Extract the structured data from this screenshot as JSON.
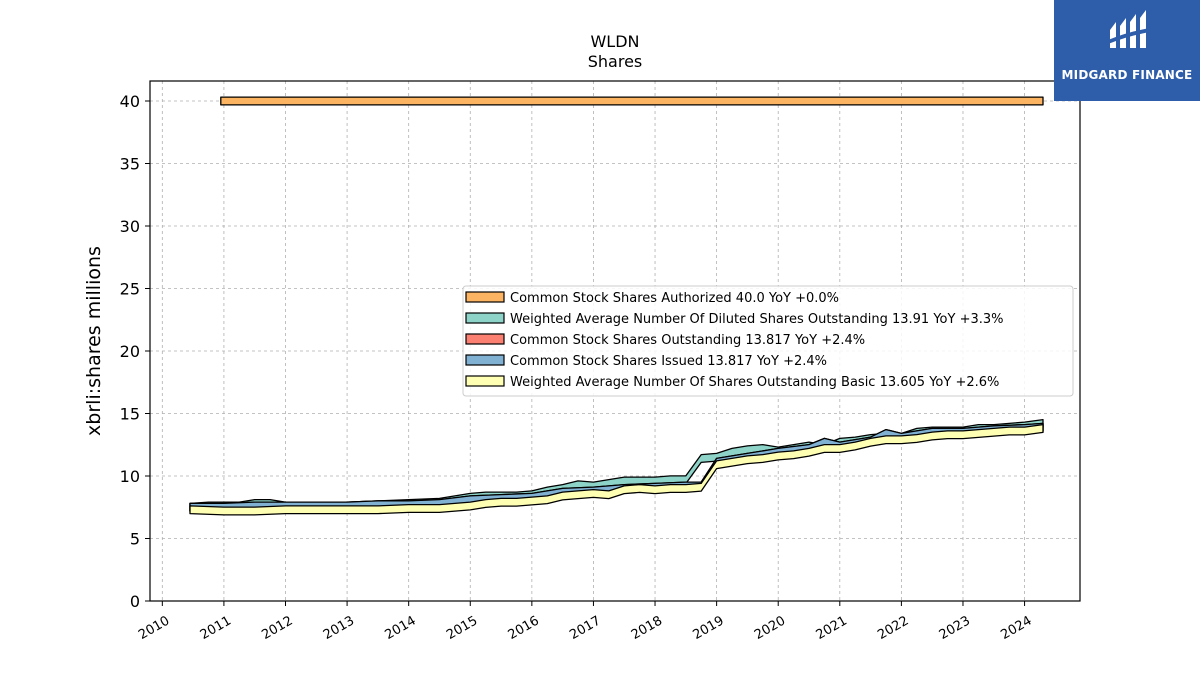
{
  "chart_data": {
    "type": "area",
    "title": "WLDN",
    "subtitle": "Shares",
    "ylabel": "xbrli:shares millions",
    "xlabel": "",
    "ylim": [
      0,
      41.6
    ],
    "xlim": [
      2009.8,
      2024.9
    ],
    "yticks": [
      0,
      5,
      10,
      15,
      20,
      25,
      30,
      35,
      40
    ],
    "xticks": [
      "2010",
      "2011",
      "2012",
      "2013",
      "2014",
      "2015",
      "2016",
      "2017",
      "2018",
      "2019",
      "2020",
      "2021",
      "2022",
      "2023",
      "2024"
    ],
    "grid": true,
    "legend_position": "center-right",
    "series": [
      {
        "name": "Common Stock Shares Authorized",
        "legend": "Common Stock Shares Authorized  40.0 YoY +0.0%",
        "color": "#fdb462",
        "x": [
          2010.95,
          2024.3
        ],
        "y": [
          40.0,
          40.0
        ]
      },
      {
        "name": "Weighted Average Number Of Diluted Shares Outstanding",
        "legend": "Weighted Average Number Of Diluted Shares Outstanding  13.91 YoY +3.3%",
        "color": "#8dd3c7",
        "x": [
          2010.45,
          2010.75,
          2011.0,
          2011.25,
          2011.5,
          2011.75,
          2012.0,
          2012.5,
          2013.0,
          2013.5,
          2014.0,
          2014.5,
          2014.75,
          2015.0,
          2015.25,
          2015.5,
          2015.75,
          2016.0,
          2016.25,
          2016.5,
          2016.75,
          2017.0,
          2017.25,
          2017.5,
          2017.75,
          2018.0,
          2018.25,
          2018.5,
          2018.75,
          2019.0,
          2019.25,
          2019.5,
          2019.75,
          2020.0,
          2020.25,
          2020.5,
          2020.75,
          2021.0,
          2021.25,
          2021.5,
          2021.75,
          2022.0,
          2022.25,
          2022.5,
          2022.75,
          2023.0,
          2023.25,
          2023.5,
          2023.75,
          2024.0,
          2024.3
        ],
        "y": [
          7.5,
          7.6,
          7.6,
          7.6,
          7.8,
          7.8,
          7.6,
          7.6,
          7.6,
          7.7,
          7.8,
          7.9,
          8.1,
          8.3,
          8.4,
          8.4,
          8.4,
          8.5,
          8.8,
          9.0,
          9.3,
          9.2,
          9.4,
          9.6,
          9.6,
          9.6,
          9.7,
          9.7,
          11.4,
          11.5,
          11.9,
          12.1,
          12.2,
          12.0,
          12.2,
          12.4,
          12.2,
          12.7,
          12.8,
          13.0,
          13.1,
          13.1,
          13.5,
          13.6,
          13.6,
          13.6,
          13.8,
          13.8,
          13.9,
          14.0,
          14.2
        ]
      },
      {
        "name": "Common Stock Shares Outstanding",
        "legend": "Common Stock Shares Outstanding  13.817 YoY +2.4%",
        "color": "#fb8072",
        "x": [
          2010.45,
          2011.0,
          2011.5,
          2012.0,
          2012.5,
          2013.0,
          2013.5,
          2014.0,
          2014.5,
          2015.0,
          2015.5,
          2016.0,
          2016.5,
          2017.0,
          2017.5,
          2018.0,
          2018.5,
          2018.75,
          2019.0,
          2019.5,
          2020.0,
          2020.5,
          2020.75,
          2021.0,
          2021.5,
          2021.75,
          2022.0,
          2022.5,
          2023.0,
          2023.5,
          2024.0,
          2024.3
        ],
        "y": [
          7.5,
          7.5,
          7.6,
          7.6,
          7.6,
          7.6,
          7.7,
          7.7,
          7.8,
          8.1,
          8.2,
          8.3,
          8.7,
          8.8,
          9.0,
          9.1,
          9.2,
          9.2,
          11.1,
          11.5,
          11.9,
          12.2,
          12.7,
          12.4,
          12.8,
          13.4,
          13.1,
          13.5,
          13.5,
          13.7,
          13.8,
          13.9
        ]
      },
      {
        "name": "Common Stock Shares Issued",
        "legend": "Common Stock Shares Issued  13.817 YoY +2.4%",
        "color": "#80b1d3",
        "x": [
          2010.45,
          2011.0,
          2011.5,
          2012.0,
          2012.5,
          2013.0,
          2013.5,
          2014.0,
          2014.5,
          2015.0,
          2015.5,
          2016.0,
          2016.5,
          2017.0,
          2017.5,
          2018.0,
          2018.5,
          2018.75,
          2019.0,
          2019.5,
          2020.0,
          2020.5,
          2020.75,
          2021.0,
          2021.5,
          2021.75,
          2022.0,
          2022.5,
          2023.0,
          2023.5,
          2024.0,
          2024.3
        ],
        "y": [
          7.5,
          7.5,
          7.6,
          7.6,
          7.6,
          7.6,
          7.7,
          7.7,
          7.8,
          8.1,
          8.2,
          8.3,
          8.7,
          8.8,
          9.0,
          9.1,
          9.2,
          9.2,
          11.1,
          11.5,
          11.9,
          12.2,
          12.7,
          12.4,
          12.8,
          13.4,
          13.1,
          13.5,
          13.5,
          13.7,
          13.8,
          13.9
        ]
      },
      {
        "name": "Weighted Average Number Of Shares Outstanding Basic",
        "legend": "Weighted Average Number Of Shares Outstanding Basic  13.605 YoY +2.6%",
        "color": "#ffffb3",
        "x": [
          2010.45,
          2011.0,
          2011.5,
          2012.0,
          2012.5,
          2013.0,
          2013.5,
          2014.0,
          2014.5,
          2014.75,
          2015.0,
          2015.25,
          2015.5,
          2015.75,
          2016.0,
          2016.25,
          2016.5,
          2016.75,
          2017.0,
          2017.25,
          2017.5,
          2017.75,
          2018.0,
          2018.25,
          2018.5,
          2018.75,
          2019.0,
          2019.25,
          2019.5,
          2019.75,
          2020.0,
          2020.25,
          2020.5,
          2020.75,
          2021.0,
          2021.25,
          2021.5,
          2021.75,
          2022.0,
          2022.25,
          2022.5,
          2022.75,
          2023.0,
          2023.25,
          2023.5,
          2023.75,
          2024.0,
          2024.3
        ],
        "y": [
          7.3,
          7.2,
          7.2,
          7.3,
          7.3,
          7.3,
          7.3,
          7.4,
          7.4,
          7.5,
          7.6,
          7.8,
          7.9,
          7.9,
          8.0,
          8.1,
          8.4,
          8.5,
          8.6,
          8.5,
          8.9,
          9.0,
          8.9,
          9.0,
          9.0,
          9.1,
          10.9,
          11.1,
          11.3,
          11.4,
          11.6,
          11.7,
          11.9,
          12.2,
          12.2,
          12.4,
          12.7,
          12.9,
          12.9,
          13.0,
          13.2,
          13.3,
          13.3,
          13.4,
          13.5,
          13.6,
          13.6,
          13.8
        ]
      }
    ]
  },
  "logo": {
    "text": "MIDGARD FINANCE",
    "icon": "midgard-logo-icon"
  }
}
